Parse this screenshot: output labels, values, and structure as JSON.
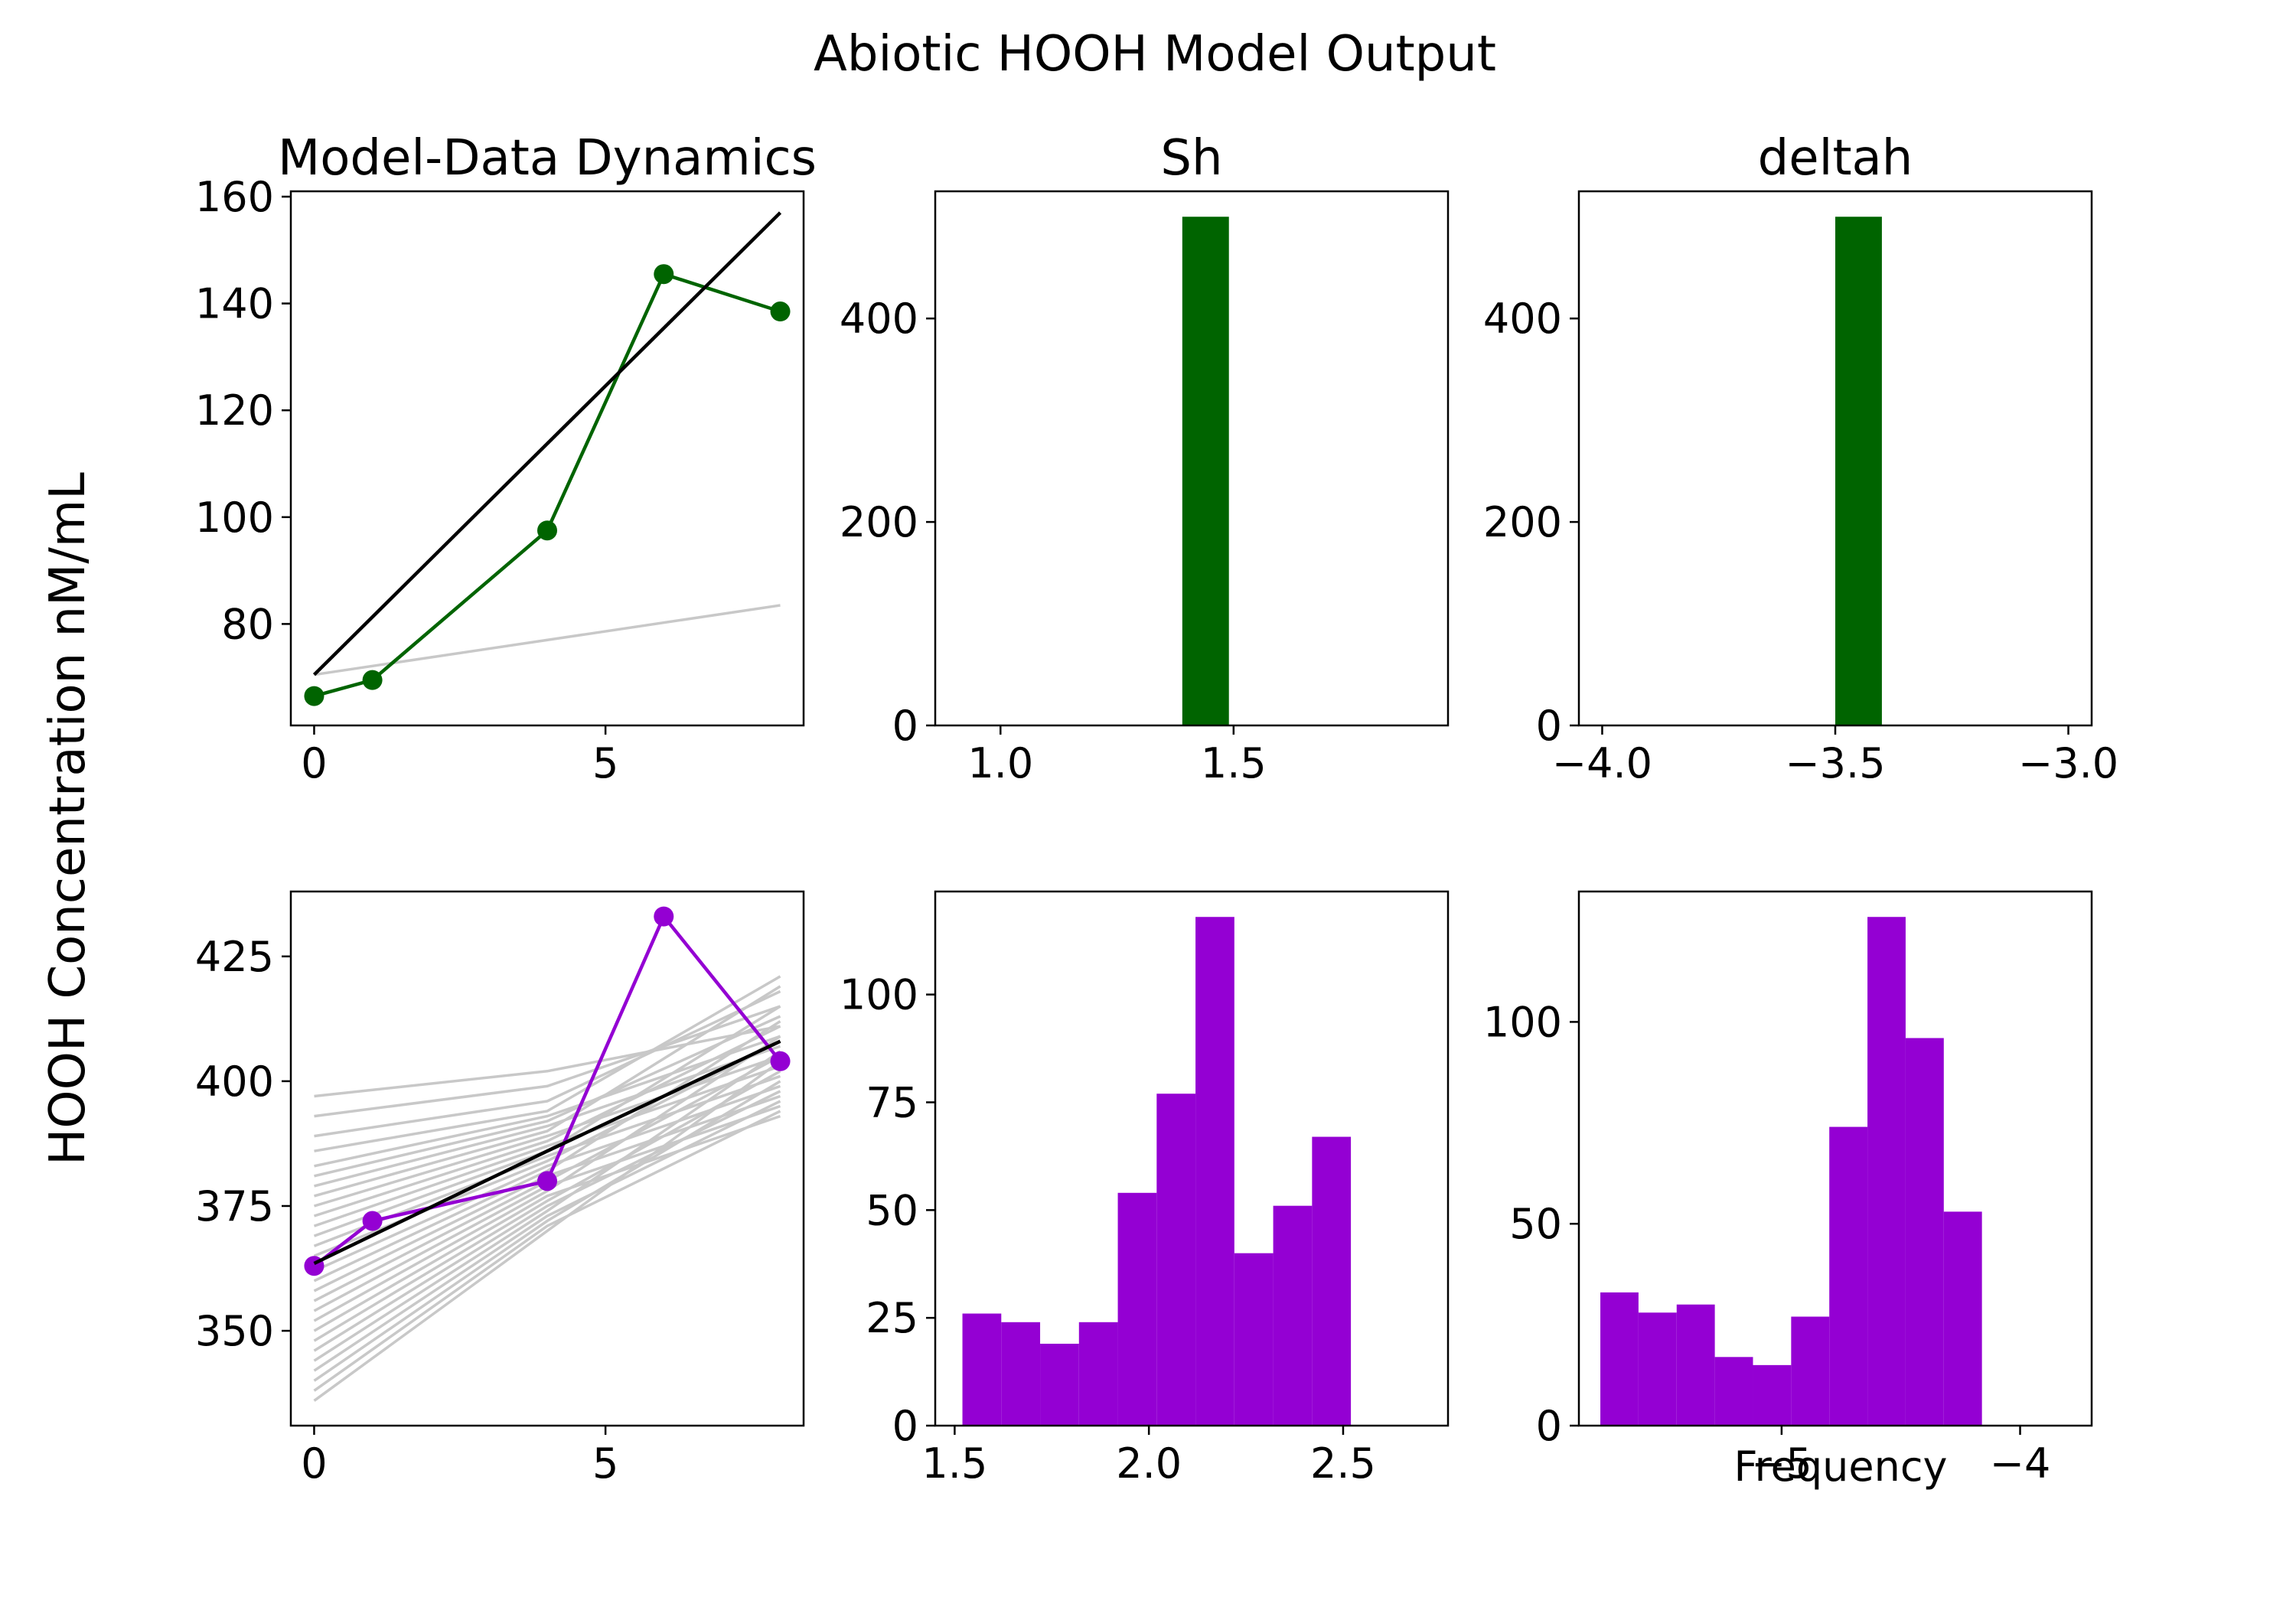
{
  "figure": {
    "title": "Abiotic HOOH Model Output",
    "ylabel": "HOOH Concentration nM/mL",
    "xlabel": "Frequency"
  },
  "colors": {
    "green": "#006400",
    "purple": "#9400d3",
    "model_line": "#000000",
    "ensemble": "#c8c8c8"
  },
  "chart_data": [
    {
      "id": "top_dynamics",
      "type": "line",
      "title": "Model-Data Dynamics",
      "xlim": [
        -0.4,
        8.4
      ],
      "ylim": [
        61,
        161
      ],
      "xticks": [
        0,
        5
      ],
      "yticks": [
        80,
        100,
        120,
        140,
        160
      ],
      "series": [
        {
          "role": "data",
          "color": "#006400",
          "markers": true,
          "x": [
            0,
            1,
            4,
            6,
            8
          ],
          "y": [
            66.5,
            69.5,
            97.5,
            145.5,
            138.5
          ]
        },
        {
          "role": "model",
          "color": "#000000",
          "markers": false,
          "x": [
            0,
            8
          ],
          "y": [
            70.5,
            157
          ]
        }
      ],
      "ensemble": {
        "color": "#c8c8c8",
        "x": [
          0,
          8
        ],
        "lines": [
          [
            70.5,
            83.5
          ]
        ]
      }
    },
    {
      "id": "top_sh",
      "type": "bar",
      "title": "Sh",
      "xlim": [
        0.86,
        1.96
      ],
      "ylim": [
        0,
        525
      ],
      "xticks": [
        1.0,
        1.5
      ],
      "yticks": [
        0,
        200,
        400
      ],
      "color": "#006400",
      "bins": [
        {
          "x0": 1.39,
          "x1": 1.49,
          "value": 500
        }
      ]
    },
    {
      "id": "top_deltah",
      "type": "bar",
      "title": "deltah",
      "xlim": [
        -4.05,
        -2.95
      ],
      "ylim": [
        0,
        525
      ],
      "xticks": [
        -4.0,
        -3.5,
        -3.0
      ],
      "yticks": [
        0,
        200,
        400
      ],
      "color": "#006400",
      "bins": [
        {
          "x0": -3.5,
          "x1": -3.4,
          "value": 500
        }
      ]
    },
    {
      "id": "bottom_dynamics",
      "type": "line",
      "title": "",
      "xlim": [
        -0.4,
        8.4
      ],
      "ylim": [
        331,
        438
      ],
      "xticks": [
        0,
        5
      ],
      "yticks": [
        350,
        375,
        400,
        425
      ],
      "series": [
        {
          "role": "data",
          "color": "#9400d3",
          "markers": true,
          "x": [
            0,
            1,
            4,
            6,
            8
          ],
          "y": [
            363,
            372,
            380,
            433,
            404
          ]
        },
        {
          "role": "model",
          "color": "#000000",
          "markers": false,
          "x": [
            0,
            4,
            8
          ],
          "y": [
            363.5,
            386,
            408
          ]
        }
      ],
      "ensemble": {
        "color": "#c8c8c8",
        "x": [
          0,
          4,
          8
        ],
        "lines": [
          [
            397,
            402,
            411
          ],
          [
            393,
            399,
            415
          ],
          [
            389,
            396,
            418
          ],
          [
            386,
            394,
            421
          ],
          [
            383,
            393,
            409
          ],
          [
            381,
            392,
            413
          ],
          [
            379,
            391,
            407
          ],
          [
            377,
            390,
            419
          ],
          [
            375,
            389,
            405
          ],
          [
            373,
            388,
            411
          ],
          [
            371,
            387,
            403
          ],
          [
            369,
            386,
            415
          ],
          [
            367,
            385,
            401
          ],
          [
            365,
            384,
            408
          ],
          [
            362,
            383,
            399
          ],
          [
            360,
            382,
            412
          ],
          [
            358,
            381,
            397
          ],
          [
            356,
            380,
            405
          ],
          [
            354,
            379,
            395
          ],
          [
            352,
            378,
            409
          ],
          [
            350,
            377,
            393
          ],
          [
            348,
            376,
            402
          ],
          [
            346,
            375,
            398
          ],
          [
            344,
            374,
            406
          ],
          [
            342,
            373,
            396
          ],
          [
            340,
            372,
            400
          ],
          [
            338,
            371,
            394
          ],
          [
            336,
            370,
            404
          ]
        ]
      }
    },
    {
      "id": "bottom_sh",
      "type": "bar",
      "title": "",
      "xlim": [
        1.45,
        2.77
      ],
      "ylim": [
        0,
        123.9
      ],
      "xticks": [
        1.5,
        2.0,
        2.5
      ],
      "yticks": [
        0,
        25,
        50,
        75,
        100
      ],
      "color": "#9400d3",
      "bins": [
        {
          "x0": 1.52,
          "x1": 1.62,
          "value": 26
        },
        {
          "x0": 1.62,
          "x1": 1.72,
          "value": 24
        },
        {
          "x0": 1.72,
          "x1": 1.82,
          "value": 19
        },
        {
          "x0": 1.82,
          "x1": 1.92,
          "value": 24
        },
        {
          "x0": 1.92,
          "x1": 2.02,
          "value": 54
        },
        {
          "x0": 2.02,
          "x1": 2.12,
          "value": 77
        },
        {
          "x0": 2.12,
          "x1": 2.22,
          "value": 118
        },
        {
          "x0": 2.22,
          "x1": 2.32,
          "value": 40
        },
        {
          "x0": 2.32,
          "x1": 2.42,
          "value": 51
        },
        {
          "x0": 2.42,
          "x1": 2.52,
          "value": 67
        }
      ]
    },
    {
      "id": "bottom_deltah",
      "type": "bar",
      "title": "",
      "xlim": [
        -5.85,
        -3.7
      ],
      "ylim": [
        0,
        132.3
      ],
      "xticks": [
        -5,
        -4
      ],
      "yticks": [
        0,
        50,
        100
      ],
      "color": "#9400d3",
      "bins": [
        {
          "x0": -5.76,
          "x1": -5.6,
          "value": 33
        },
        {
          "x0": -5.6,
          "x1": -5.44,
          "value": 28
        },
        {
          "x0": -5.44,
          "x1": -5.28,
          "value": 30
        },
        {
          "x0": -5.28,
          "x1": -5.12,
          "value": 17
        },
        {
          "x0": -5.12,
          "x1": -4.96,
          "value": 15
        },
        {
          "x0": -4.96,
          "x1": -4.8,
          "value": 27
        },
        {
          "x0": -4.8,
          "x1": -4.64,
          "value": 74
        },
        {
          "x0": -4.64,
          "x1": -4.48,
          "value": 126
        },
        {
          "x0": -4.48,
          "x1": -4.32,
          "value": 96
        },
        {
          "x0": -4.32,
          "x1": -4.16,
          "value": 53
        }
      ]
    }
  ]
}
